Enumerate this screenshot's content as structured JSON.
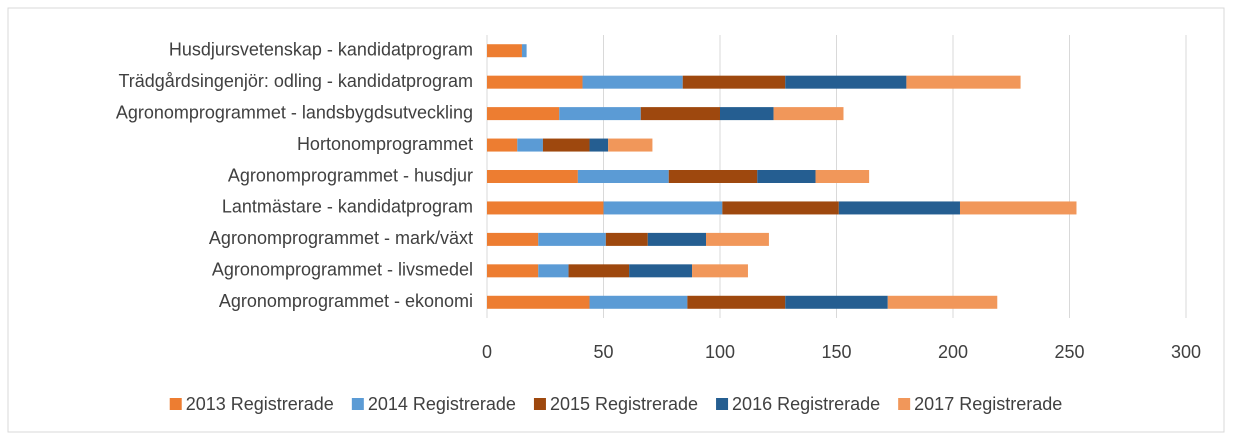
{
  "chart_data": {
    "type": "stacked-bar-horizontal",
    "categories": [
      "Husdjursvetenskap - kandidatprogram",
      "Trädgårdsingenjör: odling - kandidatprogram",
      "Agronomprogrammet - landsbygdsutveckling",
      "Hortonomprogrammet",
      "Agronomprogrammet - husdjur",
      "Lantmästare - kandidatprogram",
      "Agronomprogrammet - mark/växt",
      "Agronomprogrammet - livsmedel",
      "Agronomprogrammet - ekonomi"
    ],
    "series": [
      {
        "name": "2013 Registrerade",
        "color": "#ed7d31",
        "values": [
          15,
          41,
          31,
          13,
          39,
          50,
          22,
          22,
          44
        ]
      },
      {
        "name": "2014 Registrerade",
        "color": "#5b9bd5",
        "values": [
          2,
          43,
          35,
          11,
          39,
          51,
          29,
          13,
          42
        ]
      },
      {
        "name": "2015 Registrerade",
        "color": "#9e480e",
        "values": [
          0,
          44,
          34,
          20,
          38,
          50,
          18,
          26,
          42
        ]
      },
      {
        "name": "2016 Registrerade",
        "color": "#255e91",
        "values": [
          0,
          52,
          23,
          8,
          25,
          52,
          25,
          27,
          44
        ]
      },
      {
        "name": "2017 Registrerade",
        "color": "#f1975a",
        "values": [
          0,
          49,
          30,
          19,
          23,
          50,
          27,
          24,
          47
        ]
      }
    ],
    "xlim": [
      0,
      300
    ],
    "xticks": [
      0,
      50,
      100,
      150,
      200,
      250,
      300
    ],
    "grid": true,
    "legend": "bottom"
  }
}
